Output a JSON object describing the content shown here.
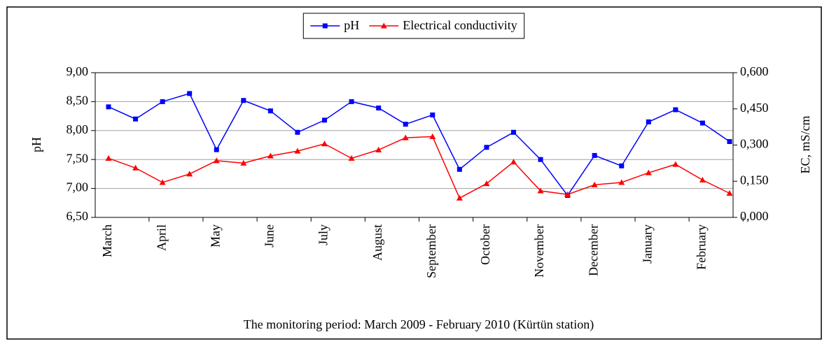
{
  "chart_data": {
    "type": "line",
    "x_label": "The monitoring period: March 2009 - February 2010 (Kürtün station)",
    "y_label": "pH",
    "y2_label": "EC, mS/cm",
    "categories": [
      "March",
      null,
      "April",
      null,
      "May",
      null,
      "June",
      null,
      "July",
      null,
      "August",
      null,
      "September",
      null,
      "October",
      null,
      "November",
      null,
      "December",
      null,
      "January",
      null,
      "February",
      null
    ],
    "series": [
      {
        "name": "pH",
        "color": "#0000ff",
        "marker": "square",
        "values": [
          8.41,
          8.2,
          8.5,
          8.64,
          7.67,
          8.52,
          8.34,
          7.97,
          8.18,
          8.5,
          8.39,
          8.11,
          8.27,
          7.33,
          7.71,
          7.97,
          7.5,
          6.88,
          7.57,
          7.39,
          8.15,
          8.36,
          8.13,
          7.81
        ]
      },
      {
        "name": "Electrical conductivity",
        "color": "#ff0000",
        "marker": "triangle",
        "axis": "y2",
        "values": [
          0.245,
          0.205,
          0.145,
          0.18,
          0.235,
          0.225,
          0.255,
          0.275,
          0.305,
          0.245,
          0.28,
          0.33,
          0.335,
          0.08,
          0.14,
          0.23,
          0.11,
          0.095,
          0.135,
          0.145,
          0.185,
          0.22,
          0.155,
          0.1
        ]
      }
    ],
    "ylim": [
      6.5,
      9
    ],
    "yticks": [
      {
        "value": 6.5,
        "label": "6,50"
      },
      {
        "value": 7,
        "label": "7,00"
      },
      {
        "value": 7.5,
        "label": "7,50"
      },
      {
        "value": 8,
        "label": "8,00"
      },
      {
        "value": 8.5,
        "label": "8,50"
      },
      {
        "value": 9,
        "label": "9,00"
      }
    ],
    "y2lim": [
      0,
      0.6
    ],
    "y2ticks": [
      {
        "value": 0,
        "label": "0,000"
      },
      {
        "value": 0.15,
        "label": "0,150"
      },
      {
        "value": 0.3,
        "label": "0,300"
      },
      {
        "value": 0.45,
        "label": "0,450"
      },
      {
        "value": 0.6,
        "label": "0,600"
      }
    ],
    "grid": true,
    "legend": "top"
  }
}
